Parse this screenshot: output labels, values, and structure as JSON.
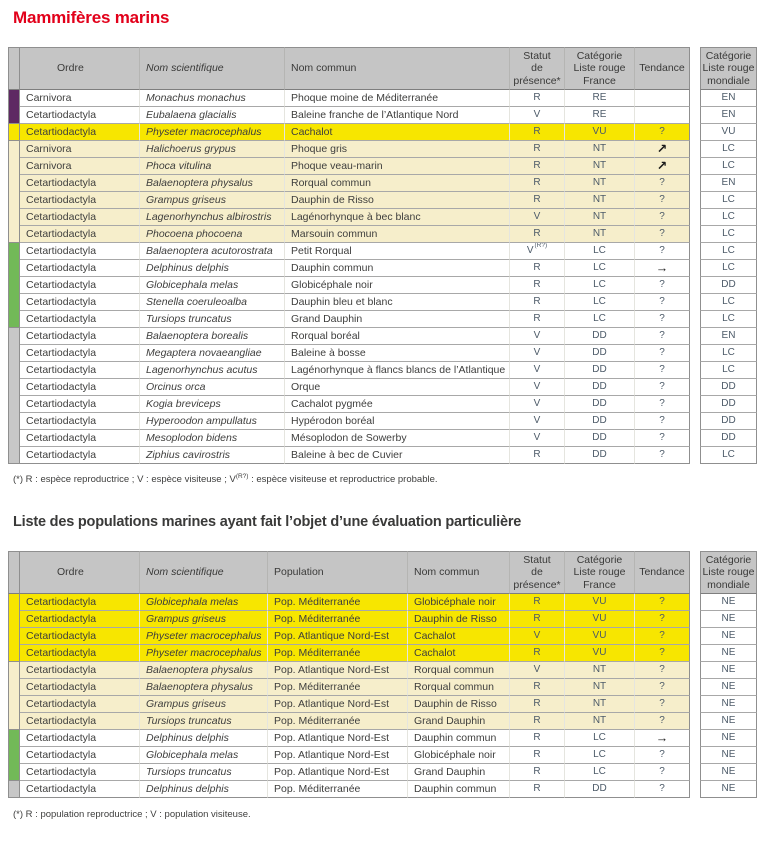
{
  "page": {
    "title": "Mammifères marins",
    "section2_title": "Liste des populations marines ayant fait l’objet d’une évaluation particulière"
  },
  "colors": {
    "title_red": "#e2001a",
    "header_bg": "#c5c5c5",
    "row_white": "#ffffff",
    "row_yellow": "#f7e600",
    "row_cream": "#f6eecb",
    "bands": {
      "purple": "#5e2963",
      "yellow": "#f7e600",
      "cream": "#f6eecb",
      "green": "#72b958",
      "gray": "#c7c7c7"
    }
  },
  "footnotes": {
    "t1_pre": "(*) R : espèce reproductrice ; V : espèce visiteuse ; V",
    "t1_sup": "(R?)",
    "t1_post": " : espèce visiteuse et reproductrice probable.",
    "t2": "(*) R : population reproductrice ; V : population visiteuse."
  },
  "table1": {
    "columns": [
      {
        "key": "ordre",
        "label": "Ordre"
      },
      {
        "key": "sci",
        "label": "Nom scientifique"
      },
      {
        "key": "commun",
        "label": "Nom commun"
      },
      {
        "key": "statut",
        "label": "Statut\nde présence*",
        "center": true
      },
      {
        "key": "france",
        "label": "Catégorie\nListe rouge\nFrance",
        "center": true
      },
      {
        "key": "tendance",
        "label": "Tendance",
        "center": true
      },
      {
        "key": "monde",
        "label": "Catégorie\nListe rouge\nmondiale",
        "center": true
      }
    ],
    "rows": [
      {
        "band": "purple",
        "bg": "white",
        "ordre": "Carnivora",
        "sci": "Monachus monachus",
        "commun": "Phoque moine de Méditerranée",
        "statut": "R",
        "france": "RE",
        "tendance": "",
        "monde": "EN"
      },
      {
        "band": "purple",
        "bg": "white",
        "ordre": "Cetartiodactyla",
        "sci": "Eubalaena glacialis",
        "commun": "Baleine franche de l’Atlantique Nord",
        "statut": "V",
        "france": "RE",
        "tendance": "",
        "monde": "EN"
      },
      {
        "band": "yellow",
        "bg": "yellow",
        "ordre": "Cetartiodactyla",
        "sci": "Physeter macrocephalus",
        "commun": "Cachalot",
        "statut": "R",
        "france": "VU",
        "tendance": "?",
        "monde": "VU"
      },
      {
        "band": "cream",
        "bg": "cream",
        "ordre": "Carnivora",
        "sci": "Halichoerus grypus",
        "commun": "Phoque gris",
        "statut": "R",
        "france": "NT",
        "tendance": "↗",
        "monde": "LC"
      },
      {
        "band": "cream",
        "bg": "cream",
        "ordre": "Carnivora",
        "sci": "Phoca vitulina",
        "commun": "Phoque veau-marin",
        "statut": "R",
        "france": "NT",
        "tendance": "↗",
        "monde": "LC"
      },
      {
        "band": "cream",
        "bg": "cream",
        "ordre": "Cetartiodactyla",
        "sci": "Balaenoptera physalus",
        "commun": "Rorqual commun",
        "statut": "R",
        "france": "NT",
        "tendance": "?",
        "monde": "EN"
      },
      {
        "band": "cream",
        "bg": "cream",
        "ordre": "Cetartiodactyla",
        "sci": "Grampus griseus",
        "commun": "Dauphin de Risso",
        "statut": "R",
        "france": "NT",
        "tendance": "?",
        "monde": "LC"
      },
      {
        "band": "cream",
        "bg": "cream",
        "ordre": "Cetartiodactyla",
        "sci": "Lagenorhynchus albirostris",
        "commun": "Lagénorhynque à bec blanc",
        "statut": "V",
        "france": "NT",
        "tendance": "?",
        "monde": "LC"
      },
      {
        "band": "cream",
        "bg": "cream",
        "ordre": "Cetartiodactyla",
        "sci": "Phocoena phocoena",
        "commun": "Marsouin commun",
        "statut": "R",
        "france": "NT",
        "tendance": "?",
        "monde": "LC"
      },
      {
        "band": "green",
        "bg": "white",
        "ordre": "Cetartiodactyla",
        "sci": "Balaenoptera acutorostrata",
        "commun": "Petit Rorqual",
        "statut": "V(R?)",
        "france": "LC",
        "tendance": "?",
        "monde": "LC"
      },
      {
        "band": "green",
        "bg": "white",
        "ordre": "Cetartiodactyla",
        "sci": "Delphinus delphis",
        "commun": "Dauphin commun",
        "statut": "R",
        "france": "LC",
        "tendance": "→",
        "monde": "LC"
      },
      {
        "band": "green",
        "bg": "white",
        "ordre": "Cetartiodactyla",
        "sci": "Globicephala melas",
        "commun": "Globicéphale noir",
        "statut": "R",
        "france": "LC",
        "tendance": "?",
        "monde": "DD"
      },
      {
        "band": "green",
        "bg": "white",
        "ordre": "Cetartiodactyla",
        "sci": "Stenella coeruleoalba",
        "commun": "Dauphin bleu et blanc",
        "statut": "R",
        "france": "LC",
        "tendance": "?",
        "monde": "LC"
      },
      {
        "band": "green",
        "bg": "white",
        "ordre": "Cetartiodactyla",
        "sci": "Tursiops truncatus",
        "commun": "Grand Dauphin",
        "statut": "R",
        "france": "LC",
        "tendance": "?",
        "monde": "LC"
      },
      {
        "band": "gray",
        "bg": "white",
        "ordre": "Cetartiodactyla",
        "sci": "Balaenoptera borealis",
        "commun": "Rorqual boréal",
        "statut": "V",
        "france": "DD",
        "tendance": "?",
        "monde": "EN"
      },
      {
        "band": "gray",
        "bg": "white",
        "ordre": "Cetartiodactyla",
        "sci": "Megaptera novaeangliae",
        "commun": "Baleine à bosse",
        "statut": "V",
        "france": "DD",
        "tendance": "?",
        "monde": "LC"
      },
      {
        "band": "gray",
        "bg": "white",
        "ordre": "Cetartiodactyla",
        "sci": "Lagenorhynchus acutus",
        "commun": "Lagénorhynque à flancs blancs de l’Atlantique",
        "statut": "V",
        "france": "DD",
        "tendance": "?",
        "monde": "LC"
      },
      {
        "band": "gray",
        "bg": "white",
        "ordre": "Cetartiodactyla",
        "sci": "Orcinus orca",
        "commun": "Orque",
        "statut": "V",
        "france": "DD",
        "tendance": "?",
        "monde": "DD"
      },
      {
        "band": "gray",
        "bg": "white",
        "ordre": "Cetartiodactyla",
        "sci": "Kogia breviceps",
        "commun": "Cachalot pygmée",
        "statut": "V",
        "france": "DD",
        "tendance": "?",
        "monde": "DD"
      },
      {
        "band": "gray",
        "bg": "white",
        "ordre": "Cetartiodactyla",
        "sci": "Hyperoodon ampullatus",
        "commun": "Hypérodon boréal",
        "statut": "V",
        "france": "DD",
        "tendance": "?",
        "monde": "DD"
      },
      {
        "band": "gray",
        "bg": "white",
        "ordre": "Cetartiodactyla",
        "sci": "Mesoplodon bidens",
        "commun": "Mésoplodon de Sowerby",
        "statut": "V",
        "france": "DD",
        "tendance": "?",
        "monde": "DD"
      },
      {
        "band": "gray",
        "bg": "white",
        "ordre": "Cetartiodactyla",
        "sci": "Ziphius cavirostris",
        "commun": "Baleine à bec de Cuvier",
        "statut": "R",
        "france": "DD",
        "tendance": "?",
        "monde": "LC"
      }
    ]
  },
  "table2": {
    "columns": [
      {
        "key": "ordre",
        "label": "Ordre"
      },
      {
        "key": "sci",
        "label": "Nom scientifique"
      },
      {
        "key": "population",
        "label": "Population"
      },
      {
        "key": "commun",
        "label": "Nom commun"
      },
      {
        "key": "statut",
        "label": "Statut\nde présence*",
        "center": true
      },
      {
        "key": "france",
        "label": "Catégorie\nListe rouge\nFrance",
        "center": true
      },
      {
        "key": "tendance",
        "label": "Tendance",
        "center": true
      },
      {
        "key": "monde",
        "label": "Catégorie\nListe rouge\nmondiale",
        "center": true
      }
    ],
    "rows": [
      {
        "band": "yellow",
        "bg": "yellow",
        "ordre": "Cetartiodactyla",
        "sci": "Globicephala melas",
        "population": "Pop. Méditerranée",
        "commun": "Globicéphale noir",
        "statut": "R",
        "france": "VU",
        "tendance": "?",
        "monde": "NE"
      },
      {
        "band": "yellow",
        "bg": "yellow",
        "ordre": "Cetartiodactyla",
        "sci": "Grampus griseus",
        "population": "Pop. Méditerranée",
        "commun": "Dauphin de Risso",
        "statut": "R",
        "france": "VU",
        "tendance": "?",
        "monde": "NE"
      },
      {
        "band": "yellow",
        "bg": "yellow",
        "ordre": "Cetartiodactyla",
        "sci": "Physeter macrocephalus",
        "population": "Pop. Atlantique Nord-Est",
        "commun": "Cachalot",
        "statut": "V",
        "france": "VU",
        "tendance": "?",
        "monde": "NE"
      },
      {
        "band": "yellow",
        "bg": "yellow",
        "ordre": "Cetartiodactyla",
        "sci": "Physeter macrocephalus",
        "population": "Pop. Méditerranée",
        "commun": "Cachalot",
        "statut": "R",
        "france": "VU",
        "tendance": "?",
        "monde": "NE"
      },
      {
        "band": "cream",
        "bg": "cream",
        "ordre": "Cetartiodactyla",
        "sci": "Balaenoptera physalus",
        "population": "Pop. Atlantique Nord-Est",
        "commun": "Rorqual commun",
        "statut": "V",
        "france": "NT",
        "tendance": "?",
        "monde": "NE"
      },
      {
        "band": "cream",
        "bg": "cream",
        "ordre": "Cetartiodactyla",
        "sci": "Balaenoptera physalus",
        "population": "Pop. Méditerranée",
        "commun": "Rorqual commun",
        "statut": "R",
        "france": "NT",
        "tendance": "?",
        "monde": "NE"
      },
      {
        "band": "cream",
        "bg": "cream",
        "ordre": "Cetartiodactyla",
        "sci": "Grampus griseus",
        "population": "Pop. Atlantique Nord-Est",
        "commun": "Dauphin de Risso",
        "statut": "R",
        "france": "NT",
        "tendance": "?",
        "monde": "NE"
      },
      {
        "band": "cream",
        "bg": "cream",
        "ordre": "Cetartiodactyla",
        "sci": "Tursiops truncatus",
        "population": "Pop. Méditerranée",
        "commun": "Grand Dauphin",
        "statut": "R",
        "france": "NT",
        "tendance": "?",
        "monde": "NE"
      },
      {
        "band": "green",
        "bg": "white",
        "ordre": "Cetartiodactyla",
        "sci": "Delphinus delphis",
        "population": "Pop. Atlantique Nord-Est",
        "commun": "Dauphin commun",
        "statut": "R",
        "france": "LC",
        "tendance": "→",
        "monde": "NE"
      },
      {
        "band": "green",
        "bg": "white",
        "ordre": "Cetartiodactyla",
        "sci": "Globicephala melas",
        "population": "Pop. Atlantique Nord-Est",
        "commun": "Globicéphale noir",
        "statut": "R",
        "france": "LC",
        "tendance": "?",
        "monde": "NE"
      },
      {
        "band": "green",
        "bg": "white",
        "ordre": "Cetartiodactyla",
        "sci": "Tursiops truncatus",
        "population": "Pop. Atlantique Nord-Est",
        "commun": "Grand Dauphin",
        "statut": "R",
        "france": "LC",
        "tendance": "?",
        "monde": "NE"
      },
      {
        "band": "gray",
        "bg": "white",
        "ordre": "Cetartiodactyla",
        "sci": "Delphinus delphis",
        "population": "Pop. Méditerranée",
        "commun": "Dauphin commun",
        "statut": "R",
        "france": "DD",
        "tendance": "?",
        "monde": "NE"
      }
    ]
  }
}
